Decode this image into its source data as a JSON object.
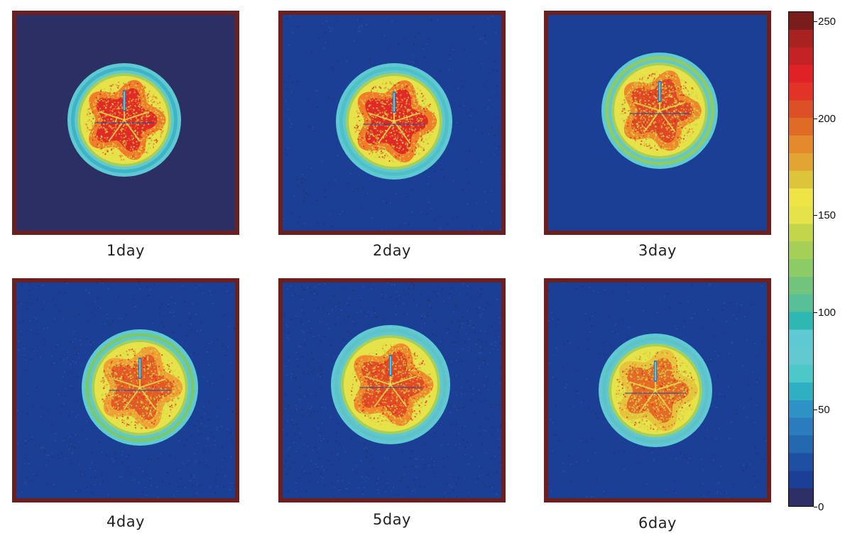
{
  "panels": [
    {
      "label": "1day",
      "background": "#2b2f63",
      "noise": 0
    },
    {
      "label": "2day",
      "background": "#1c3f96",
      "noise": 1
    },
    {
      "label": "3day",
      "background": "#1c3f96",
      "noise": 0
    },
    {
      "label": "4day",
      "background": "#1c3f96",
      "noise": 2
    },
    {
      "label": "5day",
      "background": "#1c3f96",
      "noise": 3
    },
    {
      "label": "6day",
      "background": "#1c3f96",
      "noise": 1
    }
  ],
  "colorbar": {
    "min": 0,
    "max": 255,
    "ticks": [
      0,
      50,
      100,
      150,
      200,
      250
    ],
    "tick_labels": [
      "0",
      "50",
      "100",
      "150",
      "200",
      "250"
    ],
    "colors": [
      "#2d2f66",
      "#1c3f96",
      "#1f4fa3",
      "#2468b0",
      "#2a7cbc",
      "#2f92c4",
      "#2eb0c2",
      "#4dc8c8",
      "#62c9d0",
      "#5ec9d3",
      "#2fb7b2",
      "#58bf98",
      "#72c47c",
      "#8ccb66",
      "#a6cf57",
      "#c3d54a",
      "#e6e24a",
      "#eee445",
      "#dcc43b",
      "#e2a534",
      "#e48a2d",
      "#e06b27",
      "#dc5027",
      "#e23327",
      "#e02227",
      "#c42326",
      "#a82222",
      "#7a1c1c"
    ]
  }
}
